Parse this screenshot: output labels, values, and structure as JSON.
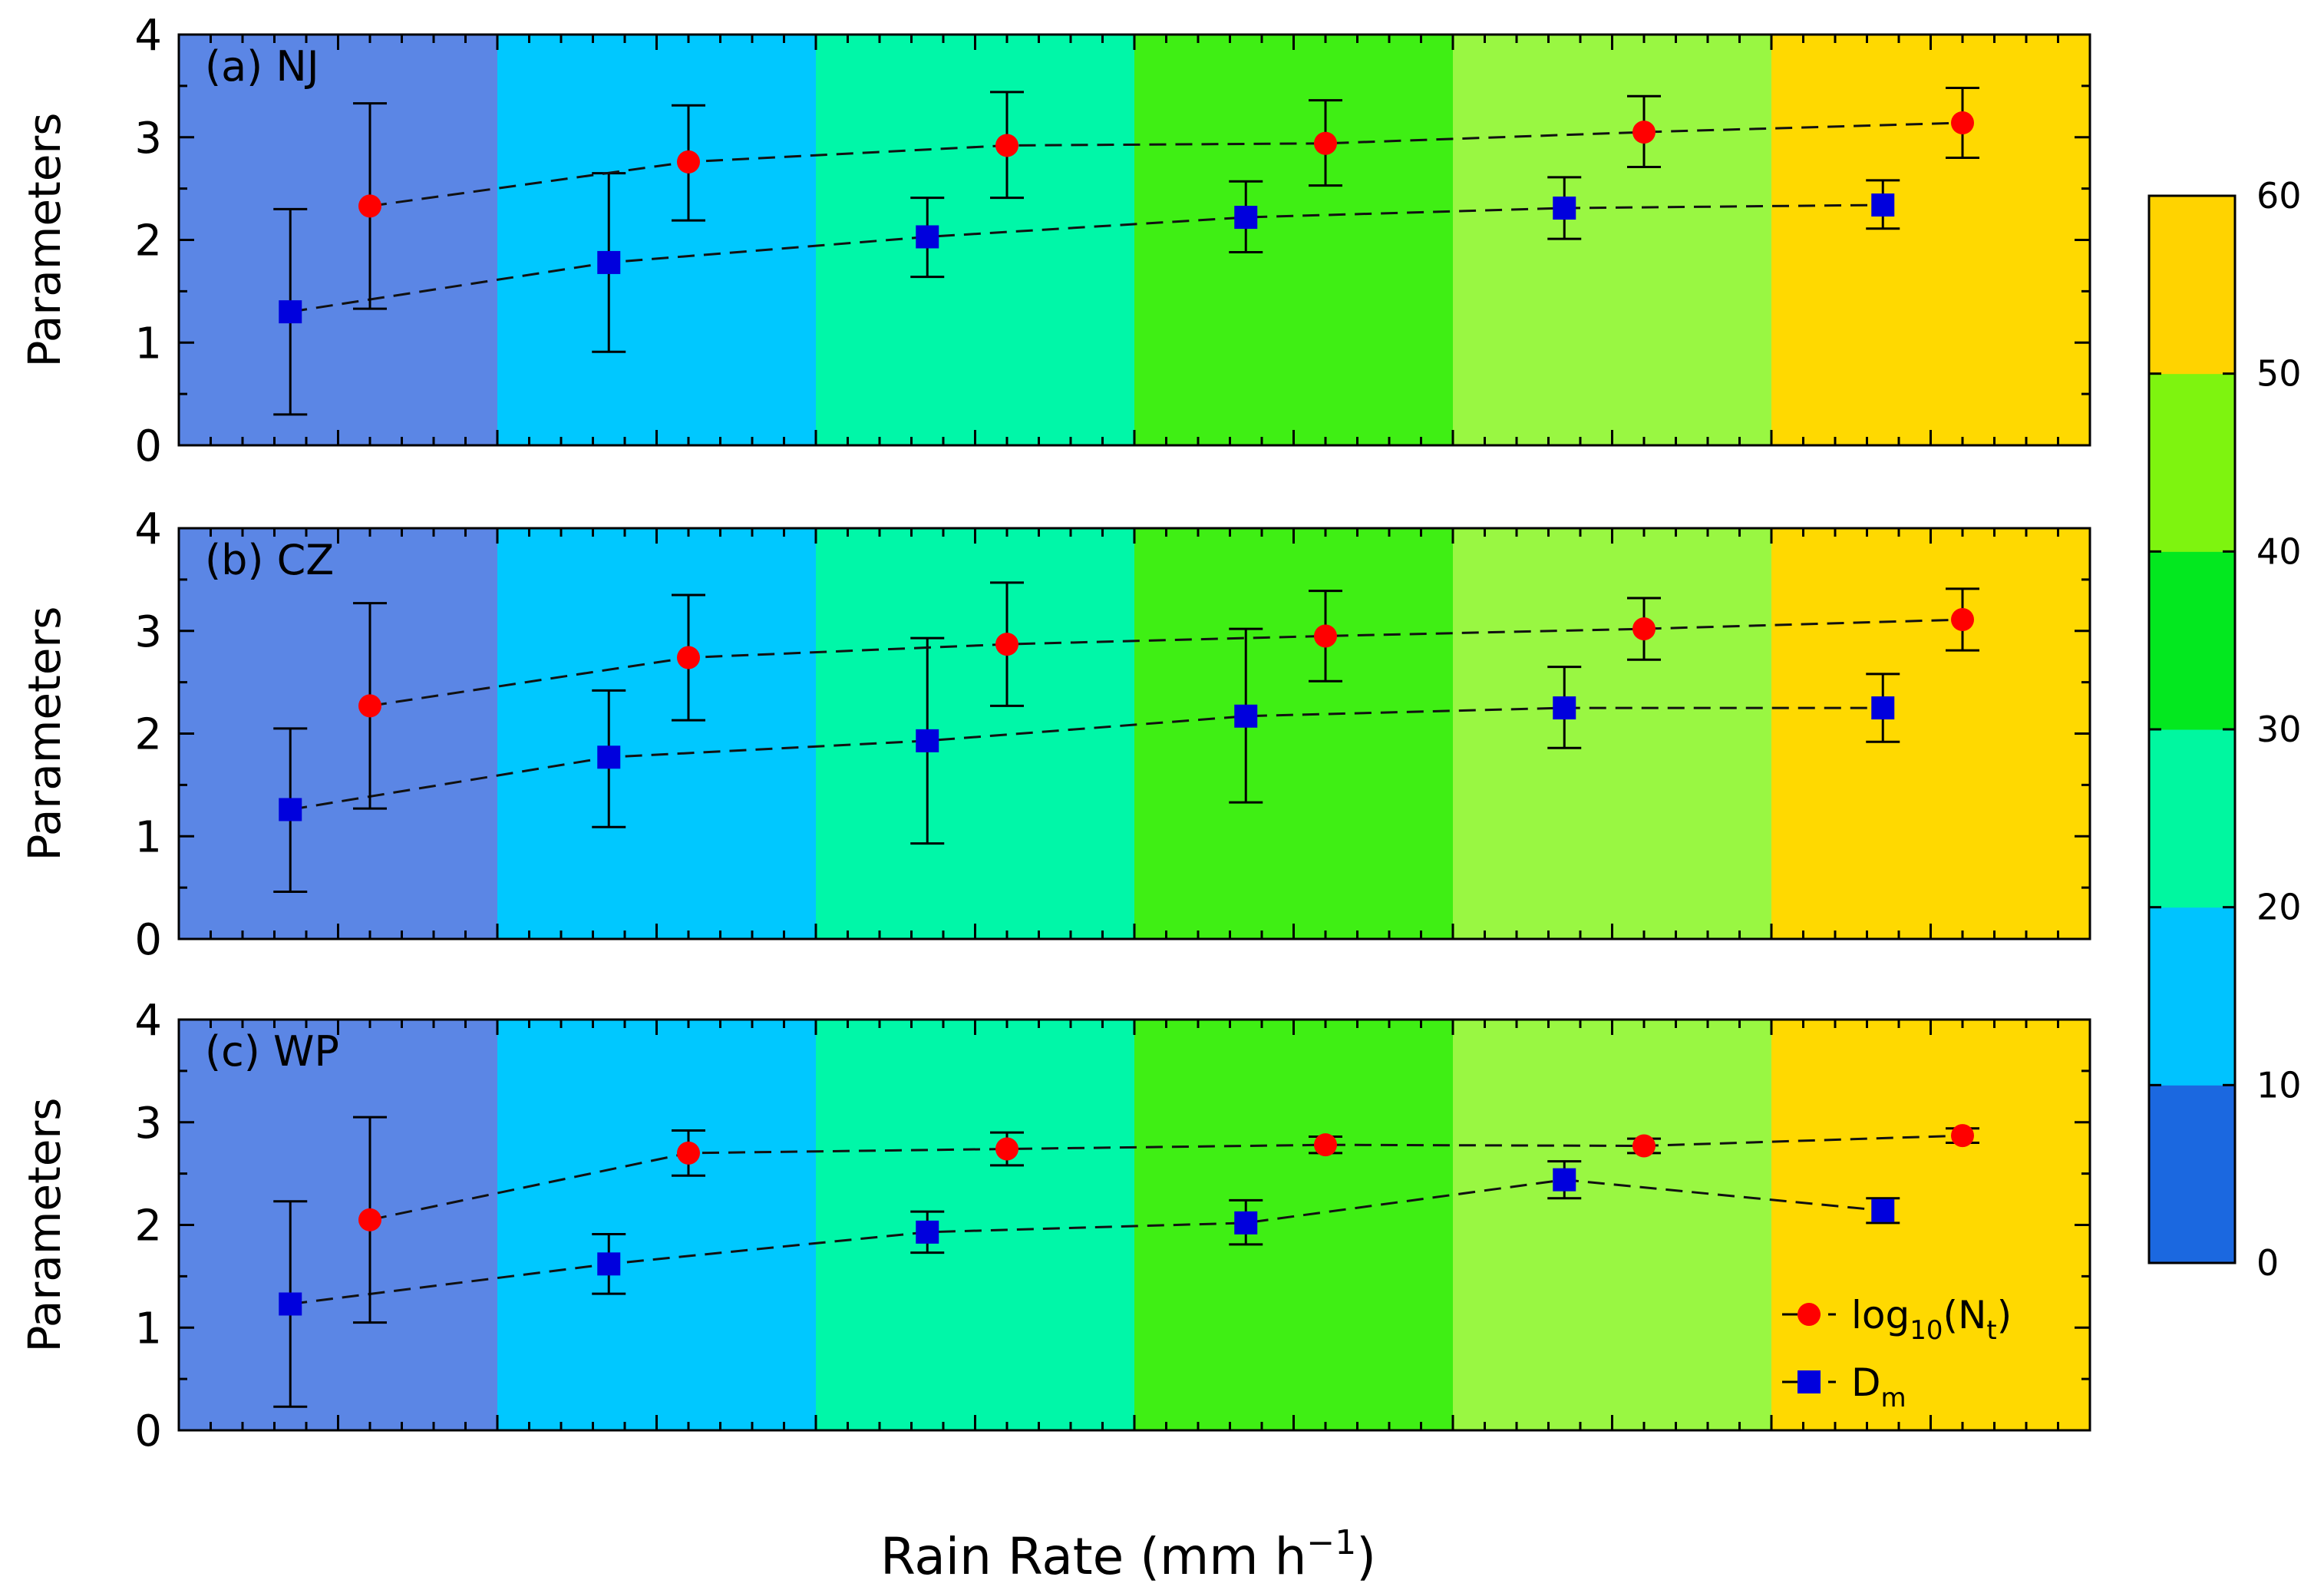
{
  "chart_data": {
    "type": "scatter",
    "xlabel": "Rain Rate (mm h",
    "xlabel_sup": "−1",
    "xlabel_end": ")",
    "ylabel": "Parameters",
    "ylim": [
      0,
      4
    ],
    "yticks": [
      "0",
      "1",
      "2",
      "3",
      "4"
    ],
    "bins": [
      {
        "range": "0-10",
        "color": "#5b86e5"
      },
      {
        "range": "10-20",
        "color": "#00c8ff"
      },
      {
        "range": "20-30",
        "color": "#00f7a8"
      },
      {
        "range": "30-40",
        "color": "#3fef14"
      },
      {
        "range": "40-50",
        "color": "#99f742"
      },
      {
        "range": "50-60",
        "color": "#ffd900"
      }
    ],
    "legend": {
      "nt": {
        "prefix": "log",
        "sub1": "10",
        "mid": "(N",
        "sub2": "t",
        "end": ")"
      },
      "dm": {
        "prefix": "D",
        "sub": "m"
      },
      "position": "lower-right"
    },
    "series_colors": {
      "nt": "#ff0000",
      "dm": "#0000dd"
    },
    "panels": [
      {
        "label": "(a) NJ",
        "nt": {
          "mean": [
            2.33,
            2.76,
            2.92,
            2.94,
            3.05,
            3.14
          ],
          "low": [
            1.33,
            2.19,
            2.41,
            2.53,
            2.71,
            2.8
          ],
          "high": [
            3.33,
            3.31,
            3.44,
            3.36,
            3.4,
            3.48
          ]
        },
        "dm": {
          "mean": [
            1.3,
            1.78,
            2.03,
            2.22,
            2.31,
            2.34
          ],
          "low": [
            0.3,
            0.91,
            1.64,
            1.88,
            2.01,
            2.11
          ],
          "high": [
            2.3,
            2.65,
            2.41,
            2.57,
            2.61,
            2.58
          ]
        }
      },
      {
        "label": "(b) CZ",
        "nt": {
          "mean": [
            2.27,
            2.74,
            2.87,
            2.95,
            3.02,
            3.11
          ],
          "low": [
            1.27,
            2.13,
            2.27,
            2.51,
            2.72,
            2.81
          ],
          "high": [
            3.27,
            3.35,
            3.47,
            3.39,
            3.32,
            3.41
          ]
        },
        "dm": {
          "mean": [
            1.26,
            1.77,
            1.93,
            2.17,
            2.25,
            2.25
          ],
          "low": [
            0.46,
            1.09,
            0.93,
            1.33,
            1.86,
            1.92
          ],
          "high": [
            2.05,
            2.42,
            2.93,
            3.02,
            2.65,
            2.58
          ]
        }
      },
      {
        "label": "(c) WP",
        "nt": {
          "mean": [
            2.05,
            2.7,
            2.74,
            2.78,
            2.77,
            2.87
          ],
          "low": [
            1.05,
            2.48,
            2.58,
            2.7,
            2.7,
            2.8
          ],
          "high": [
            3.05,
            2.92,
            2.9,
            2.86,
            2.84,
            2.94
          ]
        },
        "dm": {
          "mean": [
            1.23,
            1.62,
            1.93,
            2.02,
            2.44,
            2.14
          ],
          "low": [
            0.23,
            1.33,
            1.73,
            1.81,
            2.26,
            2.02
          ],
          "high": [
            2.23,
            1.91,
            2.13,
            2.24,
            2.62,
            2.26
          ]
        }
      }
    ],
    "colorbar": {
      "ticks": [
        "0",
        "10",
        "20",
        "30",
        "40",
        "50",
        "60"
      ],
      "colors": [
        "#1b68e0",
        "#00c3ff",
        "#00f7a0",
        "#03e81f",
        "#7ef40f",
        "#ffd300"
      ]
    }
  }
}
